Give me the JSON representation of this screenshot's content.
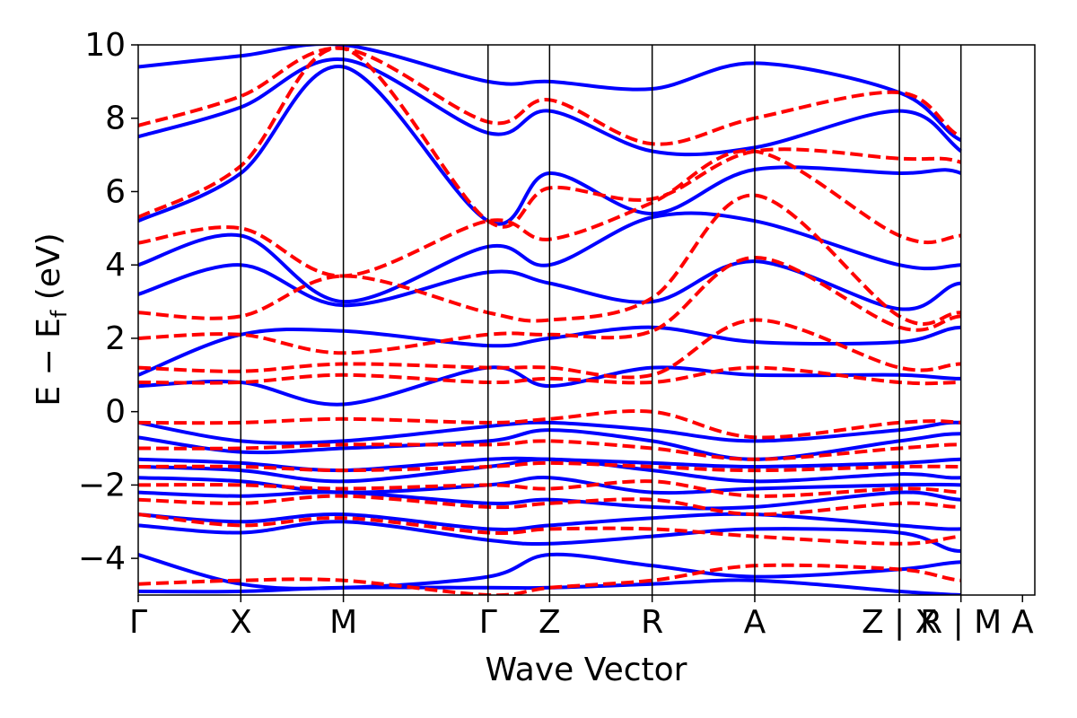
{
  "chart_data": {
    "type": "line",
    "title": "",
    "xlabel": "Wave Vector",
    "ylabel": {
      "main": "E − E",
      "subscript": "f",
      "unit": " (eV)"
    },
    "ylim": [
      -5,
      10
    ],
    "yticks": [
      -4,
      -2,
      0,
      2,
      4,
      6,
      8,
      10
    ],
    "ytick_labels": [
      "−4",
      "−2",
      "0",
      "2",
      "4",
      "6",
      "8",
      "10"
    ],
    "xlim": [
      0,
      8.74
    ],
    "kpath_ticks": [
      {
        "pos": 0.0,
        "label": "Γ"
      },
      {
        "pos": 1.0,
        "label": "X"
      },
      {
        "pos": 2.0,
        "label": "M"
      },
      {
        "pos": 3.41,
        "label": "Γ"
      },
      {
        "pos": 4.01,
        "label": "Z"
      },
      {
        "pos": 5.01,
        "label": "R"
      },
      {
        "pos": 6.01,
        "label": "A"
      },
      {
        "pos": 7.42,
        "label": "Z | X"
      },
      {
        "pos": 8.02,
        "label": "R | M"
      },
      {
        "pos": 8.62,
        "label": "A"
      }
    ],
    "grid": false,
    "legend": "none",
    "series": [
      {
        "style": "solid",
        "color": "#0000ff",
        "bands": [
          [
            -4.9,
            -4.9,
            -4.8,
            -4.8,
            -4.8,
            -4.7,
            -4.6,
            -4.9,
            -5.0,
            -5.0,
            -4.6
          ],
          [
            -3.9,
            -4.7,
            -4.8,
            -4.5,
            -3.9,
            -4.2,
            -4.5,
            -4.3,
            -4.1,
            -4.2,
            -4.4
          ],
          [
            -3.1,
            -3.3,
            -3.0,
            -3.5,
            -3.6,
            -3.4,
            -3.2,
            -3.3,
            -3.8,
            -3.3,
            -3.3
          ],
          [
            -2.8,
            -3.0,
            -2.8,
            -3.2,
            -3.1,
            -2.9,
            -2.8,
            -3.1,
            -3.2,
            -3.0,
            -2.7
          ],
          [
            -2.2,
            -2.3,
            -2.2,
            -2.5,
            -2.4,
            -2.6,
            -2.6,
            -2.2,
            -2.4,
            -2.3,
            -2.3
          ],
          [
            -1.8,
            -1.9,
            -2.2,
            -2.0,
            -1.8,
            -2.2,
            -2.1,
            -2.0,
            -2.0,
            -2.1,
            -2.1
          ],
          [
            -1.5,
            -1.6,
            -1.9,
            -1.5,
            -1.3,
            -1.6,
            -1.9,
            -1.7,
            -1.8,
            -1.5,
            -1.6
          ],
          [
            -1.3,
            -1.4,
            -1.6,
            -1.3,
            -1.3,
            -1.4,
            -1.5,
            -1.4,
            -1.3,
            -1.3,
            -1.3
          ],
          [
            -0.7,
            -1.1,
            -1.0,
            -0.8,
            -0.5,
            -0.8,
            -1.3,
            -0.8,
            -0.6,
            -0.8,
            -0.8
          ],
          [
            -0.3,
            -0.8,
            -0.8,
            -0.4,
            -0.3,
            -0.5,
            -0.8,
            -0.5,
            -0.3,
            -0.7,
            -0.7
          ],
          [
            0.7,
            0.8,
            0.2,
            1.2,
            0.7,
            1.2,
            1.0,
            1.0,
            0.9,
            1.0,
            1.0
          ],
          [
            1.0,
            2.1,
            2.2,
            1.8,
            2.0,
            2.3,
            1.9,
            1.9,
            2.3,
            2.0,
            1.9
          ],
          [
            3.2,
            4.0,
            2.9,
            3.8,
            3.5,
            3.0,
            4.1,
            2.8,
            3.5,
            3.0,
            3.0
          ],
          [
            4.0,
            4.8,
            3.0,
            4.5,
            4.0,
            5.3,
            5.2,
            4.0,
            4.0,
            4.2,
            4.2
          ],
          [
            5.2,
            6.5,
            9.4,
            5.2,
            6.5,
            5.4,
            6.6,
            6.5,
            6.5,
            5.2,
            5.2
          ],
          [
            7.5,
            8.3,
            9.6,
            7.6,
            8.2,
            7.1,
            7.2,
            8.2,
            7.1,
            5.6,
            6.7
          ],
          [
            9.4,
            9.7,
            10.0,
            9.0,
            9.0,
            8.8,
            9.5,
            8.7,
            7.4,
            7.1,
            7.1
          ]
        ]
      },
      {
        "style": "dashed",
        "color": "#ff0000",
        "bands": [
          [
            -4.7,
            -4.6,
            -4.6,
            -5.0,
            -4.8,
            -4.6,
            -4.2,
            -4.3,
            -4.6,
            -4.6,
            -4.1
          ],
          [
            -2.8,
            -3.1,
            -2.9,
            -3.3,
            -3.2,
            -3.2,
            -3.4,
            -3.6,
            -3.4,
            -3.3,
            -3.2
          ],
          [
            -2.4,
            -2.5,
            -2.3,
            -2.6,
            -2.5,
            -2.4,
            -2.8,
            -2.5,
            -2.6,
            -2.5,
            -2.5
          ],
          [
            -2.0,
            -2.0,
            -2.1,
            -2.0,
            -2.1,
            -1.9,
            -2.3,
            -2.1,
            -2.2,
            -2.3,
            -2.3
          ],
          [
            -1.5,
            -1.5,
            -1.6,
            -1.5,
            -1.4,
            -1.5,
            -1.6,
            -1.5,
            -1.5,
            -1.5,
            -1.5
          ],
          [
            -1.0,
            -1.0,
            -0.9,
            -0.9,
            -0.8,
            -1.0,
            -1.3,
            -1.0,
            -0.9,
            -1.0,
            -1.0
          ],
          [
            -0.3,
            -0.3,
            -0.2,
            -0.3,
            -0.2,
            0.0,
            -0.7,
            -0.3,
            -0.3,
            -0.6,
            -0.6
          ],
          [
            0.8,
            0.8,
            1.0,
            0.8,
            0.9,
            0.8,
            1.2,
            0.8,
            0.8,
            0.8,
            0.8
          ],
          [
            1.2,
            1.1,
            1.3,
            1.2,
            1.2,
            1.0,
            2.5,
            1.2,
            1.3,
            1.3,
            1.3
          ],
          [
            2.0,
            2.1,
            1.6,
            2.1,
            2.1,
            2.2,
            4.2,
            2.3,
            2.6,
            2.5,
            2.5
          ],
          [
            2.7,
            2.6,
            3.7,
            2.7,
            2.5,
            3.1,
            5.9,
            2.6,
            2.7,
            2.5,
            4.2
          ],
          [
            4.6,
            5.0,
            3.7,
            5.2,
            4.7,
            5.7,
            7.1,
            4.8,
            4.8,
            5.2,
            4.2
          ],
          [
            5.3,
            6.7,
            9.9,
            5.2,
            6.1,
            5.8,
            7.1,
            6.9,
            6.8,
            5.8,
            5.8
          ],
          [
            7.8,
            8.6,
            9.9,
            7.9,
            8.5,
            7.3,
            8.0,
            8.7,
            7.5,
            7.3,
            7.3
          ]
        ]
      }
    ]
  }
}
